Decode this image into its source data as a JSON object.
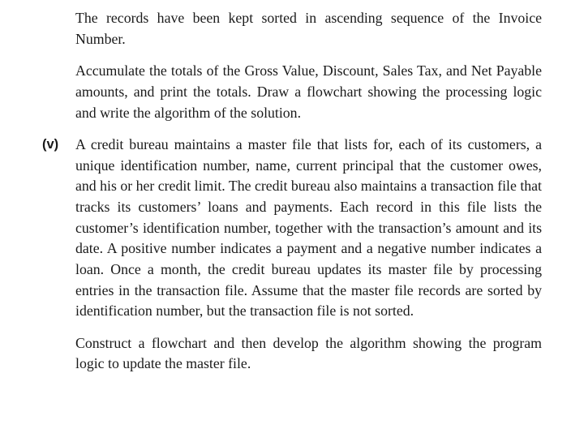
{
  "text_color": "#1a1a1a",
  "background_color": "#ffffff",
  "body": {
    "font_family_serif": "Georgia, Times New Roman, serif",
    "font_family_sans_bold": "Arial, Helvetica Neue, Helvetica, sans-serif",
    "font_size_pt": 13,
    "line_height": 1.44
  },
  "paragraphs": {
    "p1": "The records have been kept sorted in ascending sequence of the Invoice Number.",
    "p2": "Accumulate the totals of the Gross Value, Discount, Sales Tax, and Net Payable amounts, and print the totals. Draw a flowchart showing the processing logic and write the algorithm of the solution.",
    "item_marker": "(v)",
    "p3": "A credit bureau maintains a master file that lists for, each of its customers, a unique identification number, name, current principal that the customer owes, and his or her credit limit. The credit bureau also maintains a transaction file that tracks its customers’ loans and payments. Each record in this file lists the customer’s identification number, together with the transaction’s amount and its date. A positive number indicates a payment and a negative number indicates a loan. Once a month, the credit bureau updates its master file by processing entries in the transaction file. Assume that the master file records are sorted by identification number, but the transaction file is not sorted.",
    "p4": "Construct a flowchart and then develop the algorithm showing the program logic to update the master file."
  }
}
